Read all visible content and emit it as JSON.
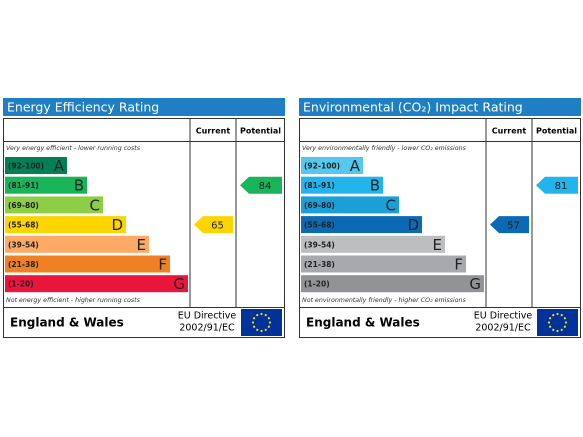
{
  "chart_data": [
    {
      "type": "epc",
      "title": "Energy Efficiency Rating",
      "column_headers": [
        "Current",
        "Potential"
      ],
      "top_note": "Very energy efficient - lower running costs",
      "bottom_note": "Not energy efficient - higher running costs",
      "bands": [
        {
          "range": "(92-100)",
          "letter": "A",
          "color": "#008054"
        },
        {
          "range": "(81-91)",
          "letter": "B",
          "color": "#19b459"
        },
        {
          "range": "(69-80)",
          "letter": "C",
          "color": "#8dce46"
        },
        {
          "range": "(55-68)",
          "letter": "D",
          "color": "#ffd500"
        },
        {
          "range": "(39-54)",
          "letter": "E",
          "color": "#fcaa65"
        },
        {
          "range": "(21-38)",
          "letter": "F",
          "color": "#ef8023"
        },
        {
          "range": "(1-20)",
          "letter": "G",
          "color": "#e9153b"
        }
      ],
      "current": 65,
      "potential": 84,
      "footer": {
        "region": "England & Wales",
        "directive": [
          "EU Directive",
          "2002/91/EC"
        ]
      }
    },
    {
      "type": "epc",
      "title": "Environmental (CO₂) Impact Rating",
      "column_headers": [
        "Current",
        "Potential"
      ],
      "top_note": "Very environmentally friendly - lower CO₂ emissions",
      "bottom_note": "Not environmentally friendly - higher CO₂ emissions",
      "bands": [
        {
          "range": "(92-100)",
          "letter": "A",
          "color": "#55c8f0"
        },
        {
          "range": "(81-91)",
          "letter": "B",
          "color": "#21b5eb"
        },
        {
          "range": "(69-80)",
          "letter": "C",
          "color": "#1b9fd8"
        },
        {
          "range": "(55-68)",
          "letter": "D",
          "color": "#0c6ab4"
        },
        {
          "range": "(39-54)",
          "letter": "E",
          "color": "#bcbec0"
        },
        {
          "range": "(21-38)",
          "letter": "F",
          "color": "#a7a9ac"
        },
        {
          "range": "(1-20)",
          "letter": "G",
          "color": "#919396"
        }
      ],
      "current": 57,
      "potential": 81,
      "footer": {
        "region": "England & Wales",
        "directive": [
          "EU Directive",
          "2002/91/EC"
        ]
      }
    }
  ]
}
